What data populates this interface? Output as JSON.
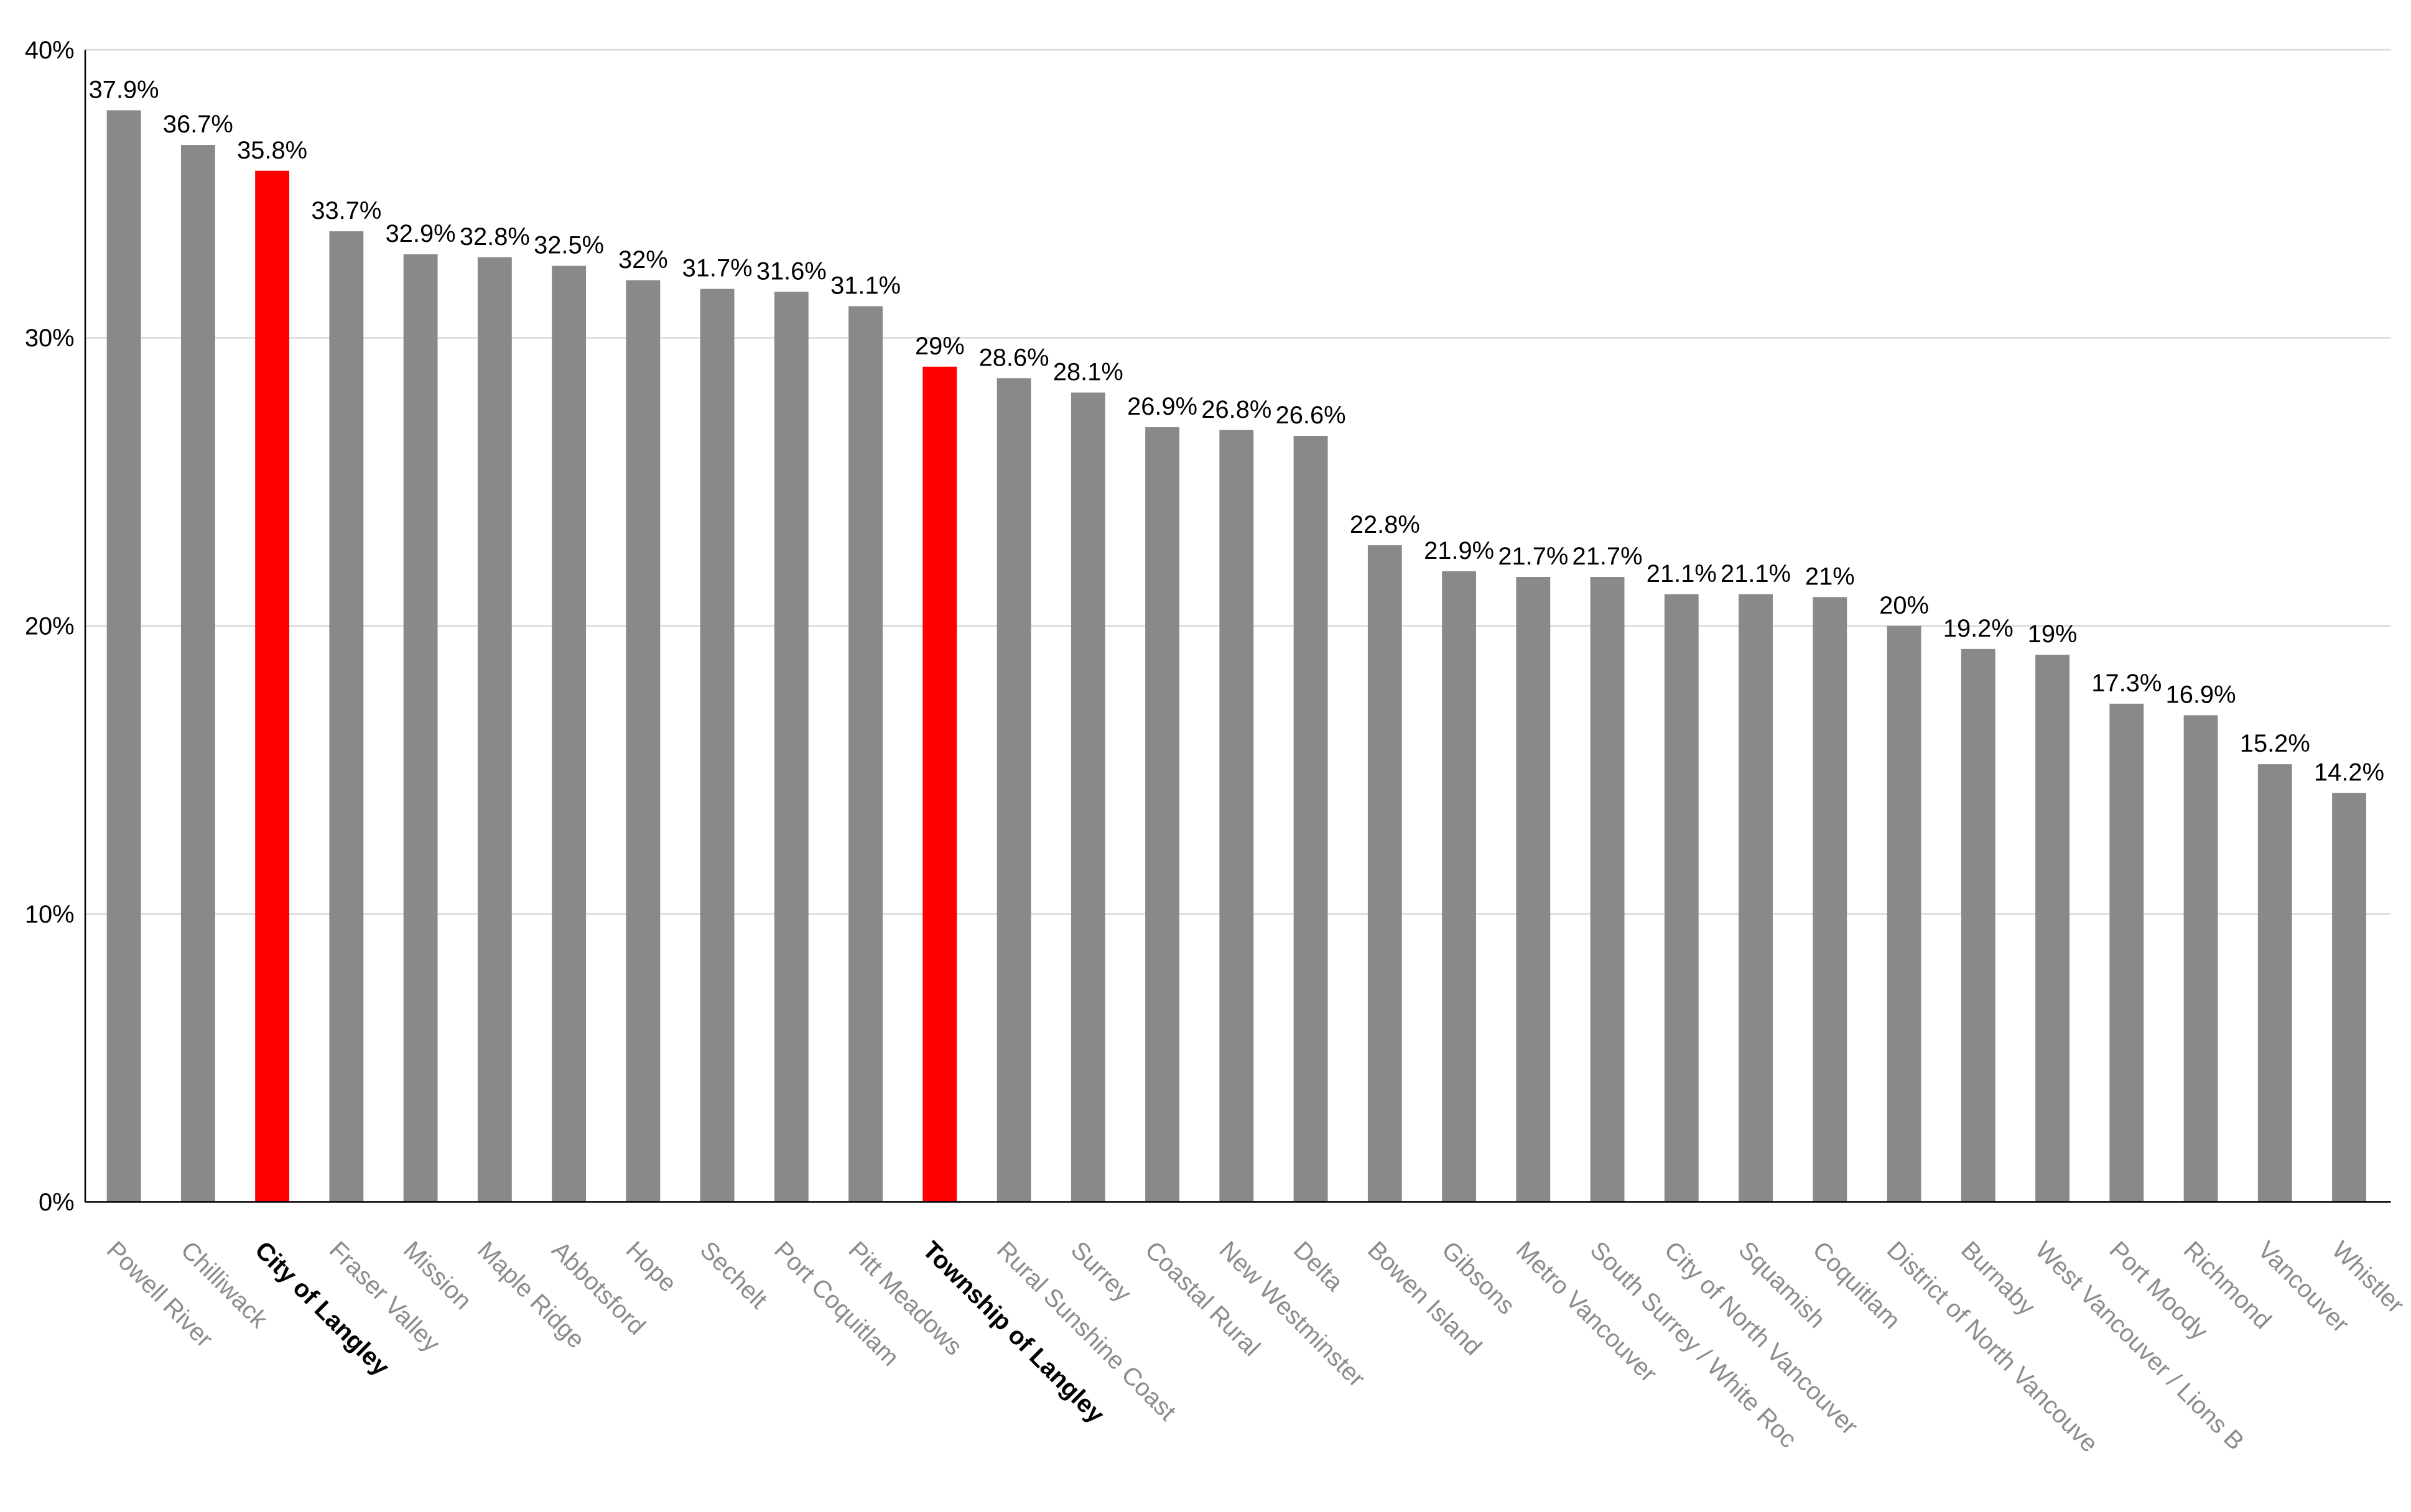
{
  "chart_data": {
    "type": "bar",
    "categories": [
      "Powell River",
      "Chilliwack",
      "City of Langley",
      "Fraser Valley",
      "Mission",
      "Maple Ridge",
      "Abbotsford",
      "Hope",
      "Sechelt",
      "Port Coquitlam",
      "Pitt Meadows",
      "Township of Langley",
      "Rural Sunshine Coast",
      "Surrey",
      "Coastal Rural",
      "New Westminster",
      "Delta",
      "Bowen Island",
      "Gibsons",
      "Metro Vancouver",
      "South Surrey / White Roc",
      "City of North Vancouver",
      "Squamish",
      "Coquitlam",
      "District of North Vancouve",
      "Burnaby",
      "West Vancouver / Lions B",
      "Port Moody",
      "Richmond",
      "Vancouver",
      "Whistler"
    ],
    "values": [
      37.9,
      36.7,
      35.8,
      33.7,
      32.9,
      32.8,
      32.5,
      32,
      31.7,
      31.6,
      31.1,
      29,
      28.6,
      28.1,
      26.9,
      26.8,
      26.6,
      22.8,
      21.9,
      21.7,
      21.7,
      21.1,
      21.1,
      21,
      20,
      19.2,
      19,
      17.3,
      16.9,
      15.2,
      14.2
    ],
    "data_labels": [
      "37.9%",
      "36.7%",
      "35.8%",
      "33.7%",
      "32.9%",
      "32.8%",
      "32.5%",
      "32%",
      "31.7%",
      "31.6%",
      "31.1%",
      "29%",
      "28.6%",
      "28.1%",
      "26.9%",
      "26.8%",
      "26.6%",
      "22.8%",
      "21.9%",
      "21.7%",
      "21.7%",
      "21.1%",
      "21.1%",
      "21%",
      "20%",
      "19.2%",
      "19%",
      "17.3%",
      "16.9%",
      "15.2%",
      "14.2%"
    ],
    "highlight_indices": [
      2,
      11
    ],
    "ylim": [
      0,
      40
    ],
    "yticks": [
      0,
      10,
      20,
      30,
      40
    ],
    "ytick_labels": [
      "0%",
      "10%",
      "20%",
      "30%",
      "40%"
    ],
    "grid": true,
    "colors": {
      "bar": "#898989",
      "highlight_bar": "#ff0000",
      "label": "#8c8c8c",
      "highlight_label": "#000000",
      "grid": "#d9d9d9"
    }
  }
}
